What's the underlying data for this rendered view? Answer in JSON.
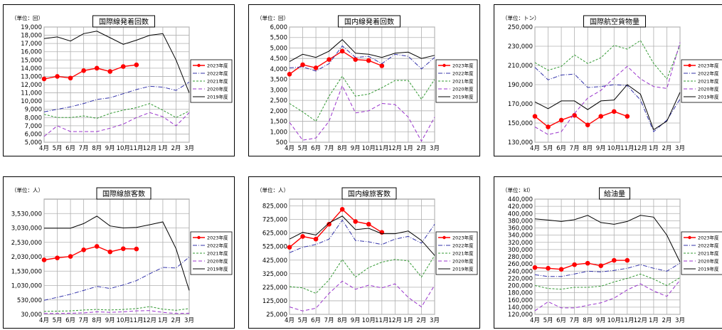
{
  "months": [
    "4月",
    "5月",
    "6月",
    "7月",
    "8月",
    "9月",
    "10月",
    "11月",
    "12月",
    "1月",
    "2月",
    "3月"
  ],
  "series_names": [
    "2023年度",
    "2022年度",
    "2021年度",
    "2020年度",
    "2019年度"
  ],
  "colors": {
    "s2023": "#ff0000",
    "s2022": "#3333aa",
    "s2021": "#339933",
    "s2020": "#9933cc",
    "s2019": "#000000"
  },
  "chart_data": [
    {
      "type": "line",
      "title": "国際線発着回数",
      "unit": "（単位：回）",
      "ylim": [
        5000,
        19000
      ],
      "yticks": [
        "5,000",
        "6,000",
        "7,000",
        "8,000",
        "9,000",
        "10,000",
        "11,000",
        "12,000",
        "13,000",
        "14,000",
        "15,000",
        "16,000",
        "17,000",
        "18,000",
        "19,000"
      ],
      "series": [
        {
          "name": "2023年度",
          "values": [
            12700,
            13000,
            12800,
            13700,
            14000,
            13600,
            14200,
            14400
          ]
        },
        {
          "name": "2022年度",
          "values": [
            8700,
            9000,
            9300,
            9700,
            10200,
            10400,
            10900,
            11400,
            11800,
            11700,
            11300,
            12300
          ]
        },
        {
          "name": "2021年度",
          "values": [
            8400,
            8000,
            8000,
            8200,
            7900,
            8500,
            8900,
            9200,
            9700,
            8900,
            8000,
            8800
          ]
        },
        {
          "name": "2020年度",
          "values": [
            5700,
            7000,
            6300,
            6300,
            6300,
            6700,
            7200,
            8000,
            8600,
            8100,
            7000,
            8600
          ]
        },
        {
          "name": "2019年度",
          "values": [
            17600,
            17800,
            17300,
            18200,
            18500,
            17700,
            16900,
            17400,
            18000,
            18200,
            15000,
            11000
          ]
        }
      ]
    },
    {
      "type": "line",
      "title": "国内線発着回数",
      "unit": "（単位：回）",
      "ylim": [
        500,
        6000
      ],
      "yticks": [
        "500",
        "1,000",
        "1,500",
        "2,000",
        "2,500",
        "3,000",
        "3,500",
        "4,000",
        "4,500",
        "5,000",
        "5,500",
        "6,000"
      ],
      "series": [
        {
          "name": "2023年度",
          "values": [
            3750,
            4200,
            4050,
            4450,
            4850,
            4450,
            4400,
            4150
          ]
        },
        {
          "name": "2022年度",
          "values": [
            4050,
            4100,
            3900,
            4250,
            5100,
            4550,
            4600,
            4250,
            4700,
            4600,
            4000,
            4550
          ]
        },
        {
          "name": "2021年度",
          "values": [
            2350,
            1950,
            1500,
            2700,
            3650,
            2700,
            2800,
            3100,
            3450,
            3450,
            2550,
            3500
          ]
        },
        {
          "name": "2020年度",
          "values": [
            1450,
            600,
            700,
            1500,
            3200,
            1900,
            2000,
            2350,
            2300,
            1700,
            550,
            1700
          ]
        },
        {
          "name": "2019年度",
          "values": [
            4350,
            4700,
            4550,
            4850,
            5400,
            4750,
            4700,
            4550,
            4750,
            4800,
            4500,
            4650
          ]
        }
      ]
    },
    {
      "type": "line",
      "title": "国際航空貨物量",
      "unit": "（単位：トン）",
      "ylim": [
        130000,
        250000
      ],
      "yticks": [
        "130,000",
        "150,000",
        "170,000",
        "190,000",
        "210,000",
        "230,000",
        "250,000"
      ],
      "series": [
        {
          "name": "2023年度",
          "values": [
            157000,
            146000,
            153000,
            158000,
            148000,
            157000,
            162000,
            157000
          ]
        },
        {
          "name": "2022年度",
          "values": [
            208000,
            195000,
            200000,
            201000,
            187000,
            188000,
            190000,
            189000,
            174000,
            141000,
            153000,
            175000
          ]
        },
        {
          "name": "2021年度",
          "values": [
            213000,
            205000,
            209000,
            221000,
            212000,
            218000,
            231000,
            227000,
            236000,
            212000,
            196000,
            231000
          ]
        },
        {
          "name": "2020年度",
          "values": [
            146000,
            138000,
            141000,
            160000,
            176000,
            184000,
            197000,
            209000,
            196000,
            188000,
            186000,
            234000
          ]
        },
        {
          "name": "2019年度",
          "values": [
            172000,
            165000,
            173000,
            173000,
            164000,
            173000,
            174000,
            190000,
            180000,
            143000,
            152000,
            182000
          ]
        }
      ]
    },
    {
      "type": "line",
      "title": "国際線旅客数",
      "unit": "（単位：人）",
      "ylim": [
        30000,
        4030000
      ],
      "yticks": [
        "30,000",
        "530,000",
        "1,030,000",
        "1,530,000",
        "2,030,000",
        "2,530,000",
        "3,030,000",
        "3,530,000"
      ],
      "series": [
        {
          "name": "2023年度",
          "values": [
            1920000,
            1990000,
            2040000,
            2270000,
            2390000,
            2200000,
            2310000,
            2300000
          ]
        },
        {
          "name": "2022年度",
          "values": [
            520000,
            620000,
            730000,
            860000,
            1000000,
            930000,
            1050000,
            1200000,
            1440000,
            1660000,
            1640000,
            2020000
          ]
        },
        {
          "name": "2021年度",
          "values": [
            130000,
            140000,
            150000,
            180000,
            200000,
            180000,
            200000,
            230000,
            300000,
            210000,
            170000,
            230000
          ]
        },
        {
          "name": "2020年度",
          "values": [
            60000,
            60000,
            70000,
            80000,
            120000,
            100000,
            120000,
            150000,
            160000,
            100000,
            60000,
            70000
          ]
        },
        {
          "name": "2019年度",
          "values": [
            3020000,
            3020000,
            3020000,
            3180000,
            3440000,
            3100000,
            3030000,
            3050000,
            3140000,
            3240000,
            2310000,
            860000
          ]
        }
      ]
    },
    {
      "type": "line",
      "title": "国内線旅客数",
      "unit": "（単位：人）",
      "ylim": [
        25000,
        875000
      ],
      "yticks": [
        "25,000",
        "125,000",
        "225,000",
        "325,000",
        "425,000",
        "525,000",
        "625,000",
        "725,000",
        "825,000"
      ],
      "series": [
        {
          "name": "2023年度",
          "values": [
            520000,
            600000,
            580000,
            690000,
            800000,
            710000,
            690000,
            630000
          ]
        },
        {
          "name": "2022年度",
          "values": [
            480000,
            520000,
            540000,
            580000,
            720000,
            570000,
            560000,
            540000,
            580000,
            600000,
            550000,
            690000
          ]
        },
        {
          "name": "2021年度",
          "values": [
            230000,
            220000,
            180000,
            280000,
            430000,
            300000,
            370000,
            410000,
            430000,
            420000,
            300000,
            460000
          ]
        },
        {
          "name": "2020年度",
          "values": [
            80000,
            50000,
            70000,
            180000,
            270000,
            210000,
            240000,
            220000,
            250000,
            150000,
            80000,
            240000
          ]
        },
        {
          "name": "2019年度",
          "values": [
            580000,
            630000,
            610000,
            700000,
            750000,
            650000,
            660000,
            620000,
            620000,
            640000,
            570000,
            460000
          ]
        }
      ]
    },
    {
      "type": "line",
      "title": "給油量",
      "unit": "（単位：kl）",
      "ylim": [
        120000,
        440000
      ],
      "yticks": [
        "120,000",
        "140,000",
        "160,000",
        "180,000",
        "200,000",
        "220,000",
        "240,000",
        "260,000",
        "280,000",
        "300,000",
        "320,000",
        "340,000",
        "360,000",
        "380,000",
        "400,000",
        "420,000",
        "440,000"
      ],
      "series": [
        {
          "name": "2023年度",
          "values": [
            250000,
            248000,
            245000,
            258000,
            262000,
            255000,
            270000,
            270000
          ]
        },
        {
          "name": "2022年度",
          "values": [
            230000,
            225000,
            225000,
            232000,
            240000,
            238000,
            242000,
            248000,
            258000,
            248000,
            240000,
            262000
          ]
        },
        {
          "name": "2021年度",
          "values": [
            200000,
            192000,
            190000,
            195000,
            195000,
            198000,
            210000,
            220000,
            232000,
            218000,
            200000,
            222000
          ]
        },
        {
          "name": "2020年度",
          "values": [
            130000,
            155000,
            138000,
            138000,
            145000,
            152000,
            165000,
            188000,
            205000,
            185000,
            170000,
            215000
          ]
        },
        {
          "name": "2019年度",
          "values": [
            385000,
            382000,
            378000,
            383000,
            395000,
            375000,
            370000,
            378000,
            395000,
            390000,
            340000,
            265000
          ]
        }
      ]
    }
  ]
}
